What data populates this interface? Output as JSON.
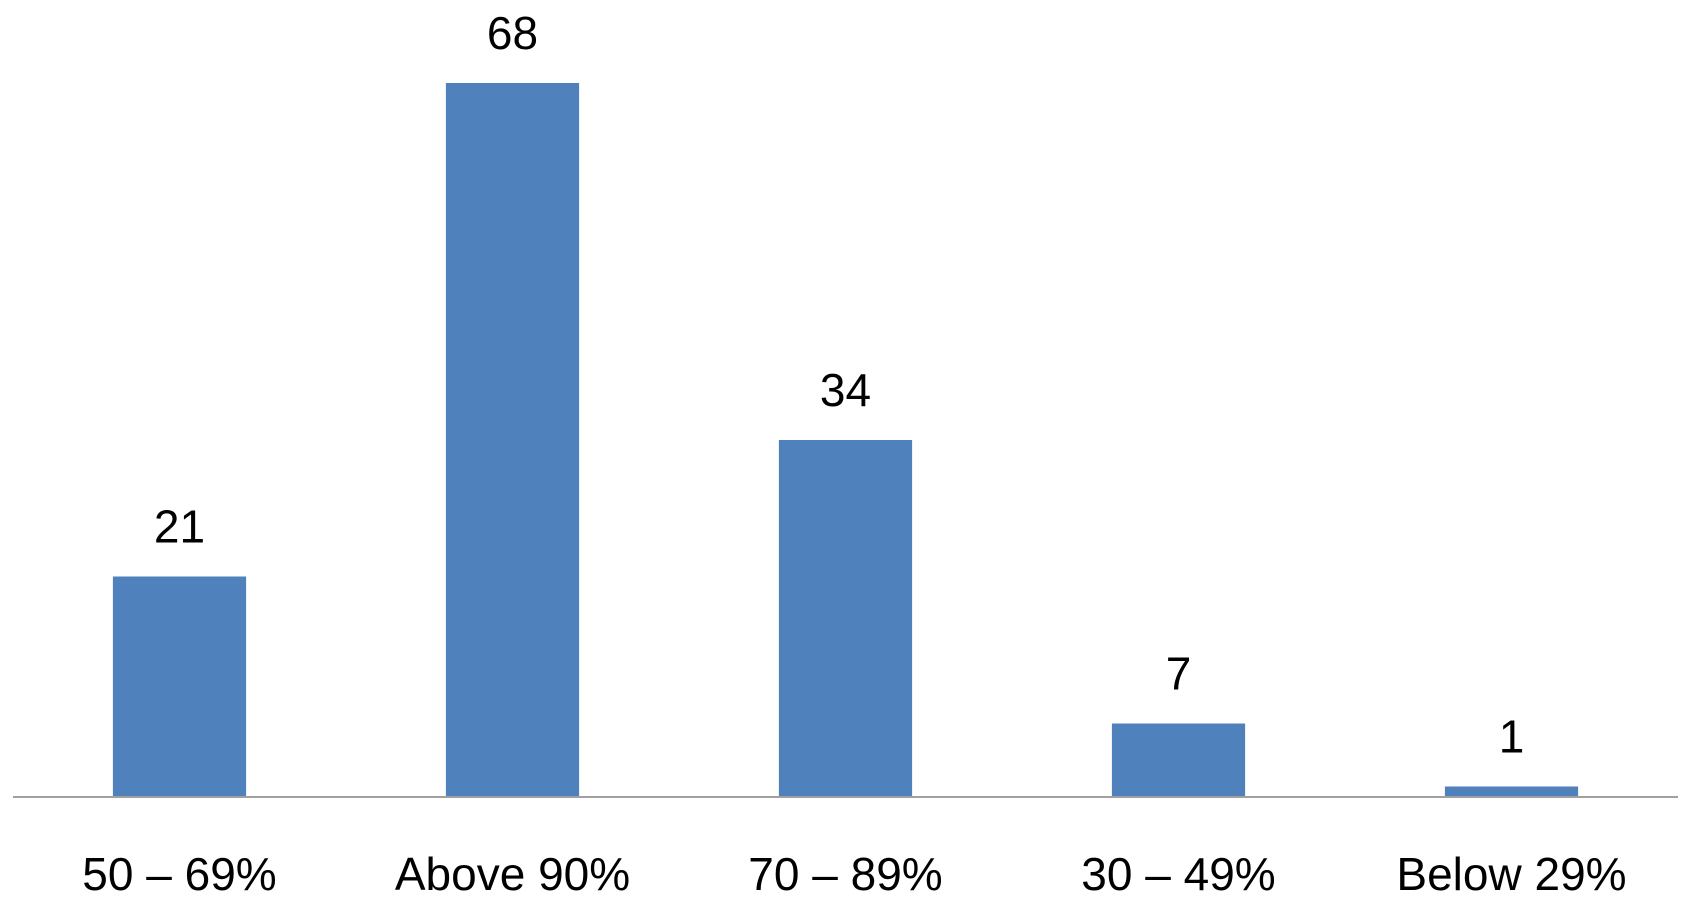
{
  "chart_data": {
    "type": "bar",
    "categories": [
      "50 – 69%",
      "Above 90%",
      "70 – 89%",
      "30 – 49%",
      "Below 29%"
    ],
    "values": [
      21,
      68,
      34,
      7,
      1
    ],
    "color": "#4f81bd"
  }
}
